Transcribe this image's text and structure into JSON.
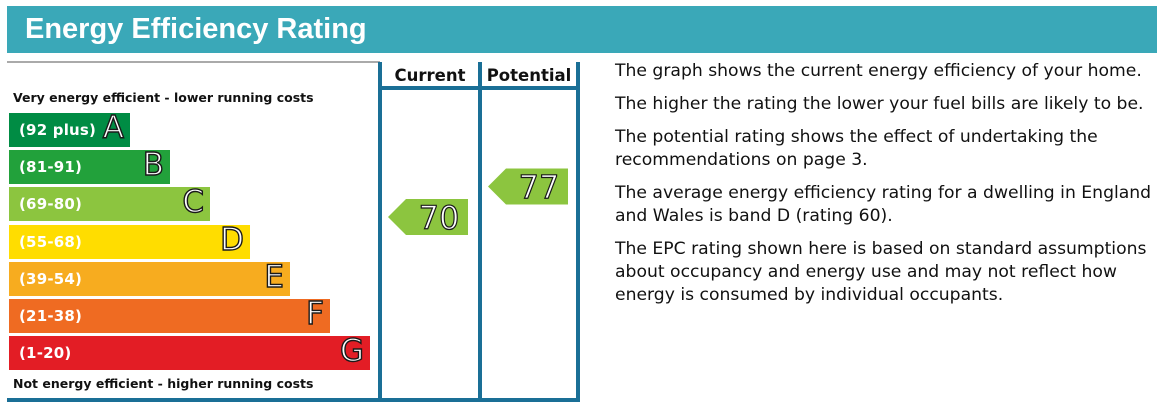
{
  "header": {
    "title": "Energy Efficiency Rating"
  },
  "chart_data": {
    "type": "bar",
    "title": "Energy Efficiency Rating",
    "top_caption": "Very energy efficient - lower running costs",
    "bottom_caption": "Not energy efficient - higher running costs",
    "bands": [
      {
        "letter": "A",
        "range": "(92 plus)",
        "color": "#008c44"
      },
      {
        "letter": "B",
        "range": "(81-91)",
        "color": "#22a13b"
      },
      {
        "letter": "C",
        "range": "(69-80)",
        "color": "#8cc53f"
      },
      {
        "letter": "D",
        "range": "(55-68)",
        "color": "#ffdd00"
      },
      {
        "letter": "E",
        "range": "(39-54)",
        "color": "#f7ac1f"
      },
      {
        "letter": "F",
        "range": "(21-38)",
        "color": "#ef6b22"
      },
      {
        "letter": "G",
        "range": "(1-20)",
        "color": "#e31d25"
      }
    ],
    "columns": [
      {
        "label": "Current",
        "value": "70",
        "band": "C",
        "color": "#8cc53f"
      },
      {
        "label": "Potential",
        "value": "77",
        "band": "C",
        "color": "#8cc53f"
      }
    ],
    "frame_color": "#1a6f96"
  },
  "info": {
    "paragraphs": [
      "The graph shows the current energy efficiency of your home.",
      "The higher the rating the lower your fuel bills are likely to be.",
      "The potential rating shows the effect of undertaking the recommendations on page 3.",
      "The average energy efficiency rating for a dwelling in England and Wales is band D (rating 60).",
      "The EPC rating shown here is based on standard assumptions about occupancy and energy use and may not reflect how energy is consumed by individual occupants."
    ]
  }
}
